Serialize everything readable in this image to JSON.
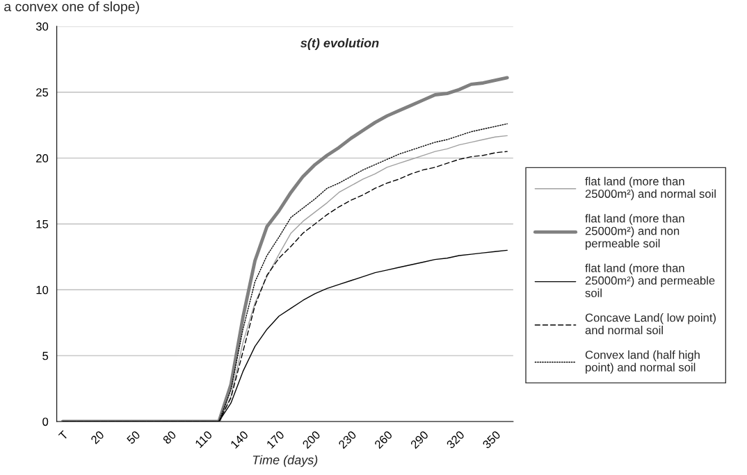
{
  "chart_data": {
    "type": "line",
    "title": "s(t) evolution",
    "xlabel": "Time (days)",
    "annotations": [
      "a convex one of slope)"
    ],
    "x": [
      -10,
      0,
      10,
      20,
      30,
      40,
      50,
      60,
      70,
      80,
      90,
      100,
      110,
      120,
      130,
      140,
      150,
      160,
      170,
      180,
      190,
      200,
      210,
      220,
      230,
      240,
      250,
      260,
      270,
      280,
      290,
      300,
      310,
      320,
      330,
      340,
      350,
      360
    ],
    "xlim": [
      -15,
      365
    ],
    "xticks": [
      {
        "value": -10,
        "label": "T"
      },
      20,
      50,
      80,
      110,
      140,
      170,
      200,
      230,
      260,
      290,
      320,
      350
    ],
    "ylim": [
      0,
      30
    ],
    "yticks": [
      0,
      5,
      10,
      15,
      20,
      25,
      30
    ],
    "grid": "y",
    "legend": "right",
    "marker": "none",
    "series": [
      {
        "name": "flat land (more than 25000m²) and normal soil",
        "color": "#a0a0a0",
        "line_style": "solid",
        "values": [
          0,
          0,
          0,
          0,
          0,
          0,
          0,
          0,
          0,
          0,
          0,
          0,
          0,
          0,
          1.9,
          6.0,
          9.0,
          11.0,
          12.7,
          14.3,
          15.2,
          15.9,
          16.6,
          17.4,
          17.9,
          18.4,
          18.8,
          19.3,
          19.6,
          19.9,
          20.2,
          20.5,
          20.7,
          21.0,
          21.2,
          21.4,
          21.6,
          21.7
        ]
      },
      {
        "name": "flat land (more than 25000m²) and non permeable soil",
        "color": "#808080",
        "line_style": "solid",
        "values": [
          0,
          0,
          0,
          0,
          0,
          0,
          0,
          0,
          0,
          0,
          0,
          0,
          0,
          0,
          2.8,
          7.9,
          12.2,
          14.8,
          16.0,
          17.4,
          18.6,
          19.5,
          20.2,
          20.8,
          21.5,
          22.1,
          22.7,
          23.2,
          23.6,
          24.0,
          24.4,
          24.8,
          24.9,
          25.2,
          25.6,
          25.7,
          25.9,
          26.1
        ]
      },
      {
        "name": "flat land (more than 25000m²) and permeable soil",
        "color": "#000000",
        "line_style": "solid",
        "values": [
          0,
          0,
          0,
          0,
          0,
          0,
          0,
          0,
          0,
          0,
          0,
          0,
          0,
          0,
          1.4,
          3.8,
          5.7,
          7.0,
          8.0,
          8.6,
          9.2,
          9.7,
          10.1,
          10.4,
          10.7,
          11.0,
          11.3,
          11.5,
          11.7,
          11.9,
          12.1,
          12.3,
          12.4,
          12.6,
          12.7,
          12.8,
          12.9,
          13.0
        ]
      },
      {
        "name": "Concave Land( low point) and normal soil",
        "color": "#000000",
        "line_style": "dashed",
        "values": [
          0,
          0,
          0,
          0,
          0,
          0,
          0,
          0,
          0,
          0,
          0,
          0,
          0,
          0,
          1.8,
          5.3,
          8.8,
          11.1,
          12.4,
          13.3,
          14.3,
          15.0,
          15.7,
          16.3,
          16.8,
          17.2,
          17.7,
          18.1,
          18.4,
          18.8,
          19.1,
          19.3,
          19.6,
          19.9,
          20.1,
          20.2,
          20.4,
          20.5
        ]
      },
      {
        "name": "Convex land (half high point) and normal soil",
        "color": "#000000",
        "line_style": "dotted",
        "values": [
          0,
          0,
          0,
          0,
          0,
          0,
          0,
          0,
          0,
          0,
          0,
          0,
          0,
          0,
          2.4,
          7.0,
          10.6,
          12.6,
          14.0,
          15.5,
          16.2,
          16.9,
          17.7,
          18.1,
          18.6,
          19.1,
          19.5,
          19.9,
          20.3,
          20.6,
          20.9,
          21.2,
          21.4,
          21.7,
          22.0,
          22.2,
          22.4,
          22.6
        ]
      }
    ]
  }
}
